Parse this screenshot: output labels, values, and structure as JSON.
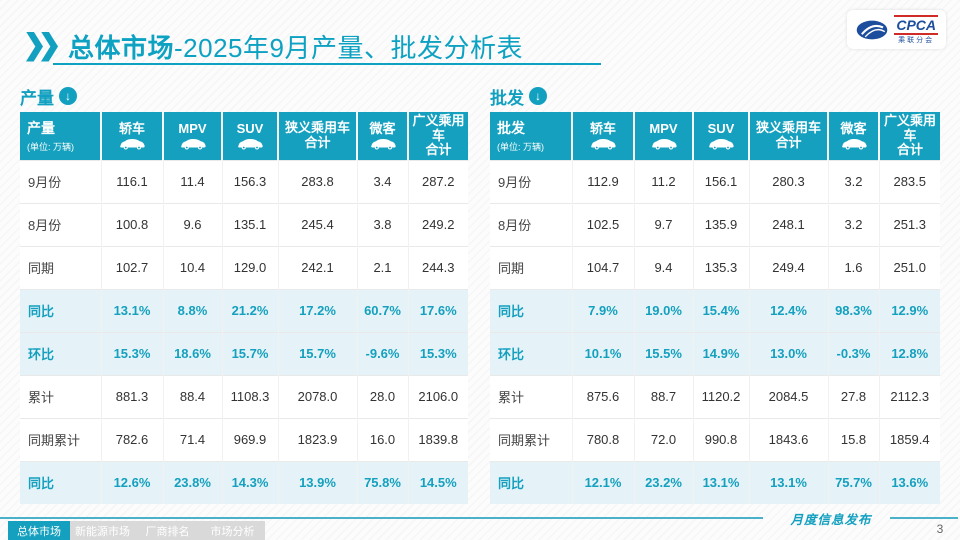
{
  "title": {
    "highlight": "总体市场",
    "rest": "-2025年9月产量、批发分析表"
  },
  "logo": {
    "brand": "CPCA",
    "sub": "乘联分会"
  },
  "colors": {
    "teal": "#14a0be",
    "highlight_row": "#e5f3f8"
  },
  "tables": [
    {
      "section": "产量",
      "corner": "产量",
      "unit": "(单位: 万辆)",
      "columns": [
        {
          "label": "轿车",
          "icon": "sedan-icon"
        },
        {
          "label": "MPV",
          "icon": "mpv-icon"
        },
        {
          "label": "SUV",
          "icon": "suv-icon"
        },
        {
          "label": "狭义乘用车\n合计"
        },
        {
          "label": "微客",
          "icon": "minibus-icon"
        },
        {
          "label": "广义乘用车\n合计"
        }
      ],
      "rows": [
        {
          "label": "9月份",
          "highlight": false,
          "values": [
            "116.1",
            "11.4",
            "156.3",
            "283.8",
            "3.4",
            "287.2"
          ]
        },
        {
          "label": "8月份",
          "highlight": false,
          "values": [
            "100.8",
            "9.6",
            "135.1",
            "245.4",
            "3.8",
            "249.2"
          ]
        },
        {
          "label": "同期",
          "highlight": false,
          "values": [
            "102.7",
            "10.4",
            "129.0",
            "242.1",
            "2.1",
            "244.3"
          ]
        },
        {
          "label": "同比",
          "highlight": true,
          "values": [
            "13.1%",
            "8.8%",
            "21.2%",
            "17.2%",
            "60.7%",
            "17.6%"
          ]
        },
        {
          "label": "环比",
          "highlight": true,
          "values": [
            "15.3%",
            "18.6%",
            "15.7%",
            "15.7%",
            "-9.6%",
            "15.3%"
          ]
        },
        {
          "label": "累计",
          "highlight": false,
          "values": [
            "881.3",
            "88.4",
            "1108.3",
            "2078.0",
            "28.0",
            "2106.0"
          ]
        },
        {
          "label": "同期累计",
          "highlight": false,
          "values": [
            "782.6",
            "71.4",
            "969.9",
            "1823.9",
            "16.0",
            "1839.8"
          ]
        },
        {
          "label": "同比",
          "highlight": true,
          "values": [
            "12.6%",
            "23.8%",
            "14.3%",
            "13.9%",
            "75.8%",
            "14.5%"
          ]
        }
      ]
    },
    {
      "section": "批发",
      "corner": "批发",
      "unit": "(单位: 万辆)",
      "columns": [
        {
          "label": "轿车",
          "icon": "sedan-icon"
        },
        {
          "label": "MPV",
          "icon": "mpv-icon"
        },
        {
          "label": "SUV",
          "icon": "suv-icon"
        },
        {
          "label": "狭义乘用车\n合计"
        },
        {
          "label": "微客",
          "icon": "minibus-icon"
        },
        {
          "label": "广义乘用车\n合计"
        }
      ],
      "rows": [
        {
          "label": "9月份",
          "highlight": false,
          "values": [
            "112.9",
            "11.2",
            "156.1",
            "280.3",
            "3.2",
            "283.5"
          ]
        },
        {
          "label": "8月份",
          "highlight": false,
          "values": [
            "102.5",
            "9.7",
            "135.9",
            "248.1",
            "3.2",
            "251.3"
          ]
        },
        {
          "label": "同期",
          "highlight": false,
          "values": [
            "104.7",
            "9.4",
            "135.3",
            "249.4",
            "1.6",
            "251.0"
          ]
        },
        {
          "label": "同比",
          "highlight": true,
          "values": [
            "7.9%",
            "19.0%",
            "15.4%",
            "12.4%",
            "98.3%",
            "12.9%"
          ]
        },
        {
          "label": "环比",
          "highlight": true,
          "values": [
            "10.1%",
            "15.5%",
            "14.9%",
            "13.0%",
            "-0.3%",
            "12.8%"
          ]
        },
        {
          "label": "累计",
          "highlight": false,
          "values": [
            "875.6",
            "88.7",
            "1120.2",
            "2084.5",
            "27.8",
            "2112.3"
          ]
        },
        {
          "label": "同期累计",
          "highlight": false,
          "values": [
            "780.8",
            "72.0",
            "990.8",
            "1843.6",
            "15.8",
            "1859.4"
          ]
        },
        {
          "label": "同比",
          "highlight": true,
          "values": [
            "12.1%",
            "23.2%",
            "13.1%",
            "13.1%",
            "75.7%",
            "13.6%"
          ]
        }
      ]
    }
  ],
  "footer": {
    "tabs": [
      {
        "label": "总体市场",
        "active": true
      },
      {
        "label": "新能源市场",
        "active": false
      },
      {
        "label": "厂商排名",
        "active": false
      },
      {
        "label": "市场分析",
        "active": false
      }
    ],
    "caption": "月度信息发布",
    "page": "3"
  }
}
